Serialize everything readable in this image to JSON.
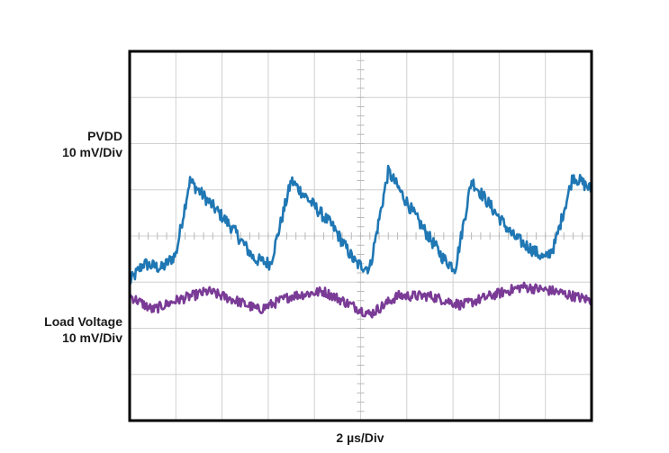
{
  "chart_data": {
    "type": "line",
    "title": "",
    "x_divisions": 10,
    "y_divisions": 8,
    "grid": true,
    "xlabel": "2 µs/Div",
    "x_per_div_us": 2,
    "series": [
      {
        "name": "PVDD",
        "label_lines": [
          "PVDD",
          "10 mV/Div"
        ],
        "color": "#1f77b4",
        "mv_per_div": 10,
        "x_div": [
          0,
          0.3,
          0.7,
          1.0,
          1.3,
          2.2,
          2.7,
          3.05,
          3.5,
          4.4,
          4.9,
          5.2,
          5.6,
          6.2,
          6.8,
          7.05,
          7.4,
          8.3,
          9.0,
          9.2,
          9.6,
          10.0
        ],
        "y_div": [
          -1.0,
          -0.6,
          -0.7,
          -0.4,
          1.2,
          0.2,
          -0.5,
          -0.6,
          1.2,
          0.2,
          -0.6,
          -0.7,
          1.4,
          0.4,
          -0.5,
          -0.7,
          1.2,
          0.0,
          -0.5,
          -0.2,
          1.3,
          1.0
        ]
      },
      {
        "name": "Load Voltage",
        "label_lines": [
          "Load Voltage",
          "10 mV/Div"
        ],
        "color": "#7a3b96",
        "mv_per_div": 10,
        "x_div": [
          0,
          0.5,
          1.0,
          1.7,
          2.3,
          2.8,
          3.5,
          4.2,
          4.8,
          5.2,
          5.8,
          6.5,
          7.2,
          7.8,
          8.5,
          9.2,
          10.0
        ],
        "y_div": [
          -1.3,
          -1.6,
          -1.4,
          -1.2,
          -1.4,
          -1.6,
          -1.3,
          -1.2,
          -1.5,
          -1.7,
          -1.3,
          -1.3,
          -1.5,
          -1.3,
          -1.1,
          -1.2,
          -1.4
        ]
      }
    ]
  }
}
